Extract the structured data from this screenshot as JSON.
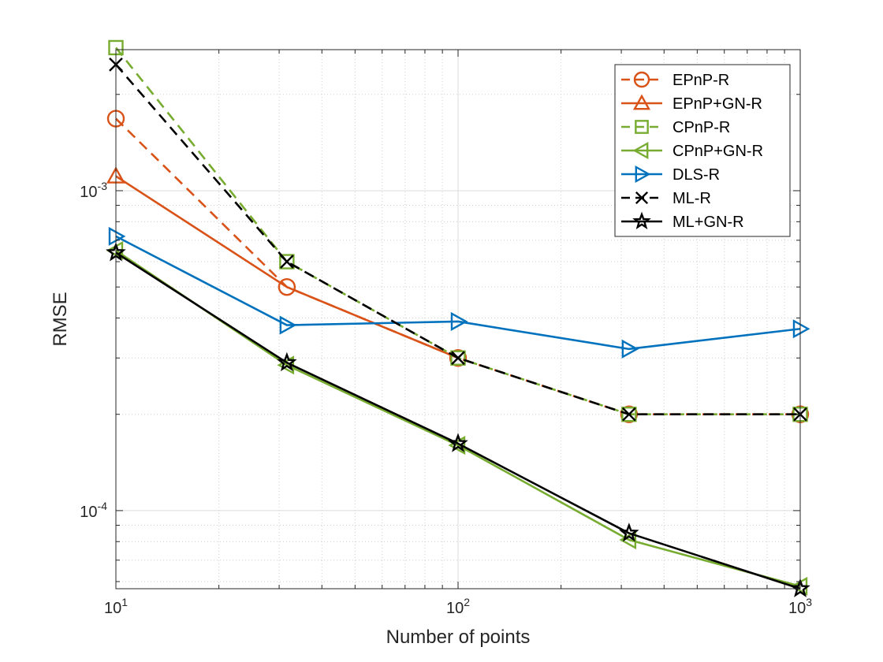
{
  "chart_data": {
    "type": "line",
    "xscale": "log",
    "yscale": "log",
    "xlabel": "Number of points",
    "ylabel": "RMSE",
    "xlim": [
      10,
      1000
    ],
    "ylim": [
      5.7e-05,
      0.00276
    ],
    "grid": true,
    "legend_position": "top-right",
    "x_major_ticks": [
      {
        "value": 10,
        "base": "10",
        "exp": "1"
      },
      {
        "value": 100,
        "base": "10",
        "exp": "2"
      },
      {
        "value": 1000,
        "base": "10",
        "exp": "3"
      }
    ],
    "y_major_ticks": [
      {
        "value": 0.0001,
        "base": "10",
        "exp": "-4"
      },
      {
        "value": 0.001,
        "base": "10",
        "exp": "-3"
      }
    ],
    "x": [
      10,
      31.6,
      100,
      316,
      1000
    ],
    "series": [
      {
        "name": "EPnP-R",
        "color": "#D95319",
        "dash": "dashed",
        "marker": "circle",
        "x": [
          10,
          31.6,
          100,
          316,
          1000
        ],
        "values": [
          0.00168,
          0.0005,
          0.0003,
          0.0002,
          0.0002
        ]
      },
      {
        "name": "EPnP+GN-R",
        "color": "#D95319",
        "dash": "solid",
        "marker": "triangle-up",
        "x": [
          10
        ],
        "values": [
          0.00111
        ]
      },
      {
        "name": "CPnP-R",
        "color": "#77AC30",
        "dash": "dashed",
        "marker": "square",
        "x": [
          10,
          31.6,
          100,
          316,
          1000
        ],
        "values": [
          0.0028,
          0.0006,
          0.0003,
          0.0002,
          0.0002
        ]
      },
      {
        "name": "CPnP+GN-R",
        "color": "#77AC30",
        "dash": "solid",
        "marker": "triangle-left",
        "x": [
          10,
          31.6,
          100,
          316,
          1000
        ],
        "values": [
          0.00065,
          0.000285,
          0.00016,
          8.1e-05,
          5.8e-05
        ]
      },
      {
        "name": "DLS-R",
        "color": "#0072BD",
        "dash": "solid",
        "marker": "triangle-right",
        "x": [
          10,
          31.6,
          100,
          316,
          1000
        ],
        "values": [
          0.00072,
          0.00038,
          0.00039,
          0.00032,
          0.00037
        ]
      },
      {
        "name": "ML-R",
        "color": "#000000",
        "dash": "dashed",
        "marker": "x",
        "x": [
          10,
          31.6,
          100,
          316,
          1000
        ],
        "values": [
          0.00248,
          0.0006,
          0.0003,
          0.0002,
          0.0002
        ]
      },
      {
        "name": "ML+GN-R",
        "color": "#000000",
        "dash": "solid",
        "marker": "star",
        "x": [
          10,
          31.6,
          100,
          316,
          1000
        ],
        "values": [
          0.00064,
          0.00029,
          0.000162,
          8.5e-05,
          5.7e-05
        ]
      }
    ],
    "extra_lines": [
      {
        "name": "EPnP+GN-R-continuation",
        "color": "#D95319",
        "dash": "solid",
        "x": [
          10,
          31.6,
          100
        ],
        "values": [
          0.00111,
          0.0005,
          0.0003
        ]
      }
    ]
  }
}
